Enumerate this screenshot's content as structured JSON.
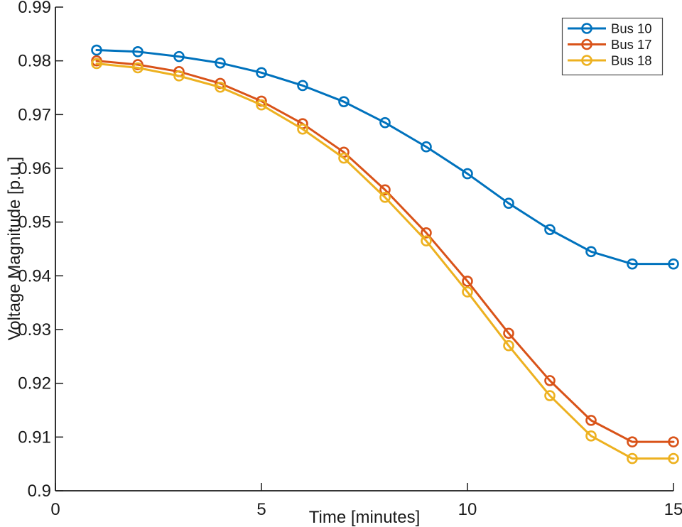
{
  "figure": {
    "background": "#ffffff",
    "axis_color": "#1a1a1a",
    "legend_border_color": "#4d4d4d"
  },
  "chart_data": {
    "type": "line",
    "title": "",
    "xlabel": "Time [minutes]",
    "ylabel": "Voltage Magnitude [p.u.]",
    "xlim": [
      0,
      15
    ],
    "ylim": [
      0.9,
      0.99
    ],
    "grid": false,
    "xticks": [
      0,
      5,
      10,
      15
    ],
    "xtick_labels": [
      "0",
      "5",
      "10",
      "15"
    ],
    "yticks": [
      0.9,
      0.91,
      0.92,
      0.93,
      0.94,
      0.95,
      0.96,
      0.97,
      0.98,
      0.99
    ],
    "ytick_labels": [
      "0.9",
      "0.91",
      "0.92",
      "0.93",
      "0.94",
      "0.95",
      "0.96",
      "0.97",
      "0.98",
      "0.99"
    ],
    "x": [
      1,
      2,
      3,
      4,
      5,
      6,
      7,
      8,
      9,
      10,
      11,
      12,
      13,
      14,
      15
    ],
    "series": [
      {
        "name": "Bus 10",
        "color": "#0072BD",
        "marker": "o",
        "values": [
          0.982,
          0.9817,
          0.9808,
          0.9796,
          0.9778,
          0.9754,
          0.9724,
          0.9685,
          0.964,
          0.959,
          0.9535,
          0.9486,
          0.9445,
          0.9422,
          0.9422
        ]
      },
      {
        "name": "Bus 17",
        "color": "#D95319",
        "marker": "o",
        "values": [
          0.98,
          0.9793,
          0.978,
          0.9758,
          0.9725,
          0.9683,
          0.963,
          0.956,
          0.948,
          0.939,
          0.9293,
          0.9205,
          0.9131,
          0.9091,
          0.9091
        ]
      },
      {
        "name": "Bus 18",
        "color": "#EDB120",
        "marker": "o",
        "values": [
          0.9795,
          0.9787,
          0.9772,
          0.9751,
          0.9718,
          0.9673,
          0.9619,
          0.9546,
          0.9465,
          0.937,
          0.927,
          0.9177,
          0.9102,
          0.906,
          0.906
        ]
      }
    ],
    "legend": {
      "position": "top-right",
      "border": true,
      "entries": [
        "Bus 10",
        "Bus 17",
        "Bus 18"
      ]
    }
  }
}
